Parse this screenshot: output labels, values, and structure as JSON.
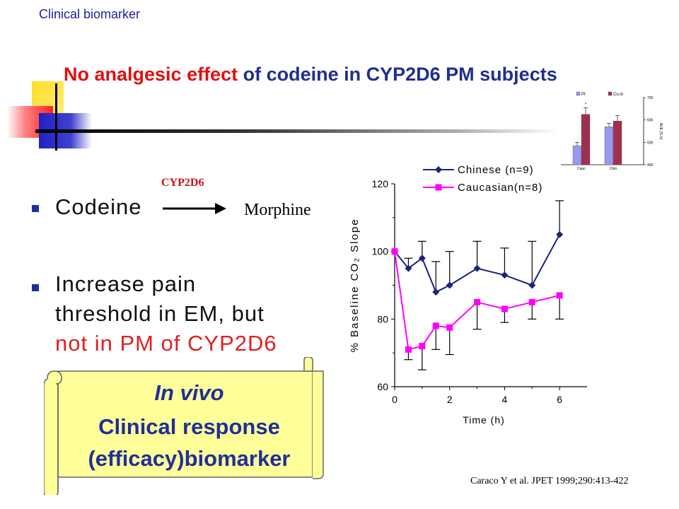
{
  "header_label": "Clinical biomarker",
  "title": {
    "part_red": "No analgesic effect",
    "part_blue": "of codeine  in CYP2D6 PM subjects"
  },
  "bullet1": {
    "text": "Codeine",
    "enzyme": "CYP2D6",
    "product": "Morphine"
  },
  "bullet2": {
    "line1": "Increase pain",
    "line2": "threshold in EM, but",
    "line3": "not in PM of CYP2D6"
  },
  "scroll": {
    "line1": "In vivo",
    "line2": "Clinical response",
    "line3": "(efficacy)biomarker"
  },
  "citation": "Caraco Y et al. JPET 1999;290:413-422",
  "colors": {
    "title_blue": "#1f2f8f",
    "title_red": "#e01010",
    "chinese": "#1a237e",
    "caucasian": "#ff00ff",
    "scroll_fill": "#ffff99"
  },
  "chart_data": [
    {
      "type": "line",
      "xlabel": "Time (h)",
      "ylabel": "% Baseline CO₂ Slope",
      "xlim": [
        0,
        7
      ],
      "ylim": [
        60,
        120
      ],
      "xticks": [
        "0",
        "2",
        "4",
        "6"
      ],
      "yticks": [
        "60",
        "80",
        "100",
        "120"
      ],
      "legend_position": "top",
      "series": [
        {
          "name": "Chinese (n=9)",
          "marker": "diamond",
          "x": [
            0,
            0.5,
            1,
            1.5,
            2,
            3,
            4,
            5,
            6
          ],
          "y": [
            100,
            95,
            98,
            88,
            90,
            95,
            93,
            90,
            105
          ],
          "err": [
            0,
            3,
            5,
            9,
            10,
            8,
            8,
            13,
            10
          ]
        },
        {
          "name": "Caucasian(n=8)",
          "marker": "square",
          "x": [
            0,
            0.5,
            1,
            1.5,
            2,
            3,
            4,
            5,
            6
          ],
          "y": [
            100,
            71,
            72,
            78,
            77.5,
            85,
            83,
            85,
            87
          ],
          "err": [
            0,
            3,
            7,
            7,
            8,
            8,
            4,
            5,
            7
          ]
        }
      ]
    },
    {
      "type": "bar",
      "legend": [
        "PI",
        "Co.in"
      ],
      "categories": [
        "Cauc",
        "Chin"
      ],
      "ylabel": "AUE (%.h)",
      "yticks": [
        "400",
        "500",
        "600",
        "700"
      ],
      "ylim": [
        400,
        700
      ],
      "series": [
        {
          "name": "PI",
          "values": [
            485,
            570
          ],
          "err": [
            15,
            15
          ]
        },
        {
          "name": "Co.in",
          "values": [
            625,
            595
          ],
          "err": [
            30,
            25
          ]
        }
      ]
    }
  ]
}
